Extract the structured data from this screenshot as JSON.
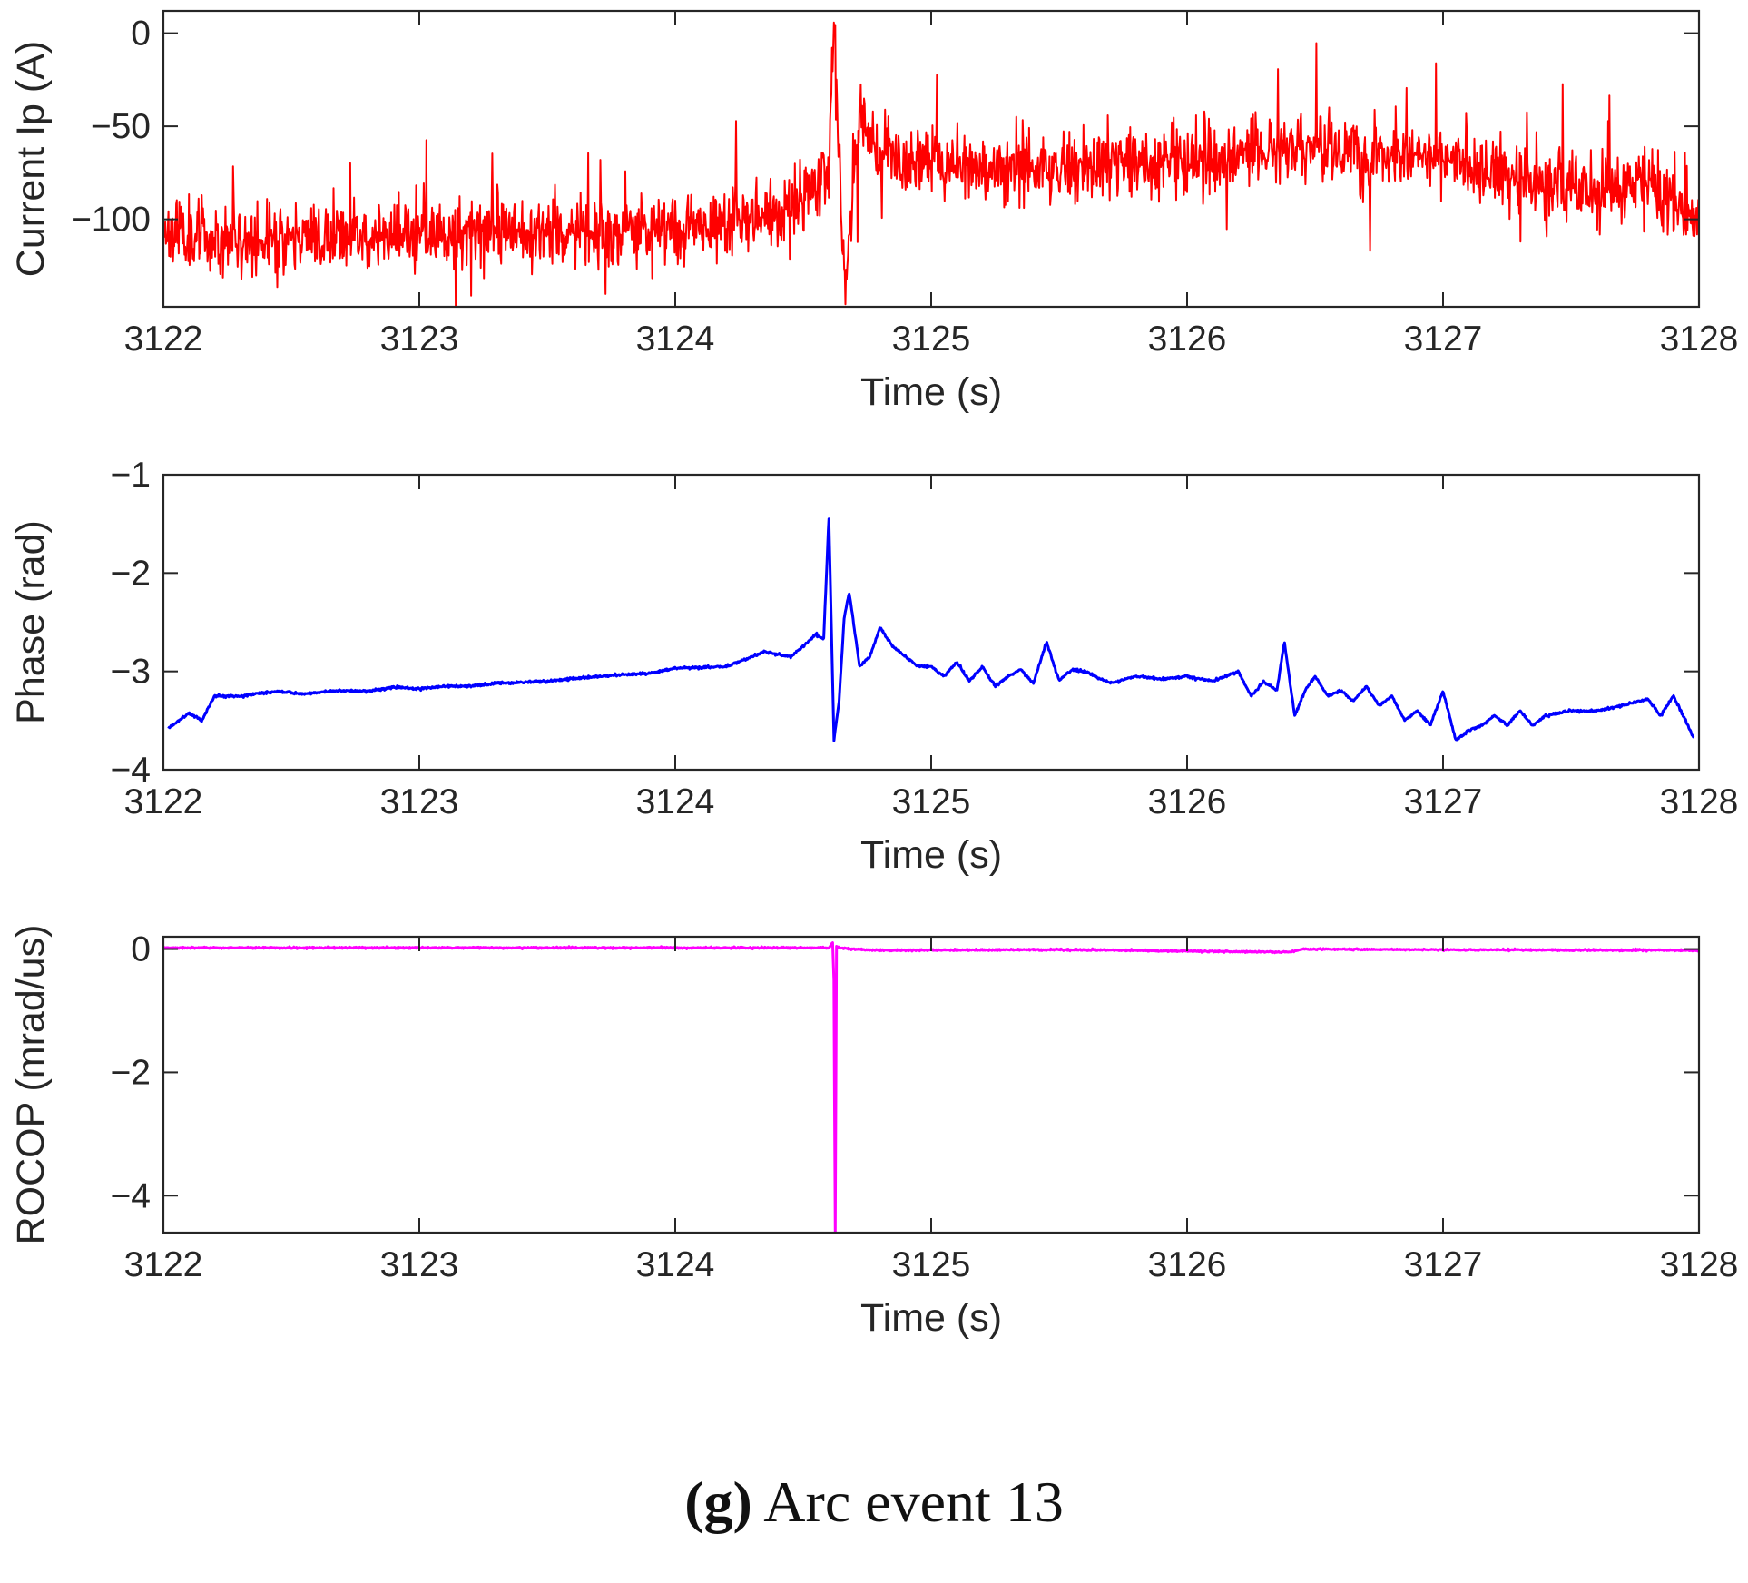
{
  "figure": {
    "caption_letter": "(g)",
    "caption_text": "Arc event 13"
  },
  "chart_data": [
    {
      "type": "line",
      "id": "current",
      "xlabel": "Time (s)",
      "ylabel": "Current Ip (A)",
      "xlim": [
        3122,
        3128
      ],
      "ylim": [
        -147,
        12
      ],
      "xticks": [
        3122,
        3123,
        3124,
        3125,
        3126,
        3127,
        3128
      ],
      "yticks": [
        -100,
        -50,
        0
      ],
      "ytick_labels": [
        "−100",
        "−50",
        "0"
      ],
      "color": "#ff0000",
      "noise": 9,
      "spike_prob": 0.02,
      "spike_scale": 30,
      "seed": 11,
      "series": [
        {
          "name": "Current Ip (A)",
          "x": [
            3122.0,
            3122.3,
            3122.6,
            3123.0,
            3123.3,
            3123.6,
            3124.0,
            3124.2,
            3124.4,
            3124.55,
            3124.6,
            3124.62,
            3124.64,
            3124.66,
            3124.68,
            3124.7,
            3124.72,
            3124.75,
            3124.8,
            3124.9,
            3125.0,
            3125.2,
            3125.4,
            3125.6,
            3125.8,
            3126.0,
            3126.2,
            3126.4,
            3126.6,
            3126.8,
            3127.0,
            3127.2,
            3127.4,
            3127.6,
            3127.8,
            3128.0
          ],
          "y": [
            -105,
            -112,
            -110,
            -108,
            -105,
            -107,
            -106,
            -102,
            -96,
            -86,
            -72,
            5,
            -60,
            -138,
            -115,
            -70,
            -45,
            -50,
            -62,
            -70,
            -68,
            -76,
            -72,
            -72,
            -70,
            -68,
            -62,
            -60,
            -65,
            -64,
            -68,
            -76,
            -82,
            -86,
            -80,
            -100
          ]
        }
      ]
    },
    {
      "type": "line",
      "id": "phase",
      "xlabel": "Time (s)",
      "ylabel": "Phase (rad)",
      "xlim": [
        3122,
        3128
      ],
      "ylim": [
        -4,
        -1
      ],
      "xticks": [
        3122,
        3123,
        3124,
        3125,
        3126,
        3127,
        3128
      ],
      "yticks": [
        -4,
        -3,
        -2,
        -1
      ],
      "ytick_labels": [
        "−4",
        "−3",
        "−2",
        "−1"
      ],
      "color": "#0000ff",
      "noise": 0.006,
      "spike_prob": 0,
      "spike_scale": 0,
      "seed": 5,
      "series": [
        {
          "name": "Phase (rad)",
          "x": [
            3122.02,
            3122.1,
            3122.15,
            3122.2,
            3122.3,
            3122.45,
            3122.55,
            3122.65,
            3122.8,
            3122.9,
            3123.0,
            3123.1,
            3123.2,
            3123.3,
            3123.5,
            3123.7,
            3123.9,
            3124.0,
            3124.2,
            3124.35,
            3124.45,
            3124.5,
            3124.55,
            3124.58,
            3124.6,
            3124.62,
            3124.64,
            3124.66,
            3124.68,
            3124.72,
            3124.76,
            3124.8,
            3124.85,
            3124.9,
            3124.95,
            3125.0,
            3125.05,
            3125.1,
            3125.15,
            3125.2,
            3125.25,
            3125.3,
            3125.35,
            3125.4,
            3125.45,
            3125.5,
            3125.55,
            3125.6,
            3125.7,
            3125.8,
            3125.9,
            3126.0,
            3126.1,
            3126.2,
            3126.25,
            3126.3,
            3126.35,
            3126.38,
            3126.42,
            3126.46,
            3126.5,
            3126.55,
            3126.6,
            3126.65,
            3126.7,
            3126.75,
            3126.8,
            3126.85,
            3126.9,
            3126.95,
            3127.0,
            3127.05,
            3127.1,
            3127.15,
            3127.2,
            3127.25,
            3127.3,
            3127.35,
            3127.4,
            3127.5,
            3127.6,
            3127.7,
            3127.8,
            3127.85,
            3127.9,
            3127.98
          ],
          "y": [
            -3.58,
            -3.42,
            -3.5,
            -3.25,
            -3.25,
            -3.2,
            -3.23,
            -3.2,
            -3.2,
            -3.16,
            -3.18,
            -3.15,
            -3.15,
            -3.12,
            -3.1,
            -3.05,
            -3.02,
            -2.97,
            -2.95,
            -2.8,
            -2.85,
            -2.75,
            -2.62,
            -2.68,
            -1.42,
            -3.7,
            -3.3,
            -2.45,
            -2.2,
            -2.95,
            -2.85,
            -2.55,
            -2.75,
            -2.85,
            -2.95,
            -2.95,
            -3.05,
            -2.9,
            -3.1,
            -2.95,
            -3.15,
            -3.05,
            -2.98,
            -3.12,
            -2.7,
            -3.1,
            -2.98,
            -3.0,
            -3.12,
            -3.05,
            -3.08,
            -3.05,
            -3.1,
            -3.0,
            -3.25,
            -3.1,
            -3.2,
            -2.7,
            -3.45,
            -3.2,
            -3.05,
            -3.25,
            -3.2,
            -3.3,
            -3.15,
            -3.35,
            -3.25,
            -3.5,
            -3.4,
            -3.55,
            -3.2,
            -3.7,
            -3.6,
            -3.55,
            -3.45,
            -3.55,
            -3.4,
            -3.55,
            -3.45,
            -3.4,
            -3.4,
            -3.35,
            -3.28,
            -3.45,
            -3.25,
            -3.68
          ]
        }
      ]
    },
    {
      "type": "line",
      "id": "rocop",
      "xlabel": "Time (s)",
      "ylabel": "ROCOP (mrad/us)",
      "xlim": [
        3122,
        3128
      ],
      "ylim": [
        -4.6,
        0.2
      ],
      "xticks": [
        3122,
        3123,
        3124,
        3125,
        3126,
        3127,
        3128
      ],
      "yticks": [
        -4,
        -2,
        0
      ],
      "ytick_labels": [
        "−4",
        "−2",
        "0"
      ],
      "color": "#ff00ff",
      "noise": 0.006,
      "spike_prob": 0,
      "spike_scale": 0,
      "seed": 3,
      "series": [
        {
          "name": "ROCOP (mrad/us)",
          "x": [
            3122.0,
            3123.0,
            3124.0,
            3124.6,
            3124.615,
            3124.62,
            3124.625,
            3124.63,
            3124.64,
            3124.7,
            3124.8,
            3125.5,
            3126.4,
            3126.45,
            3127.0,
            3128.0
          ],
          "y": [
            0.02,
            0.02,
            0.02,
            0.02,
            0.1,
            -0.5,
            -4.6,
            0.05,
            0.02,
            0.0,
            -0.02,
            -0.01,
            -0.05,
            0.0,
            -0.01,
            -0.02
          ]
        }
      ]
    }
  ]
}
